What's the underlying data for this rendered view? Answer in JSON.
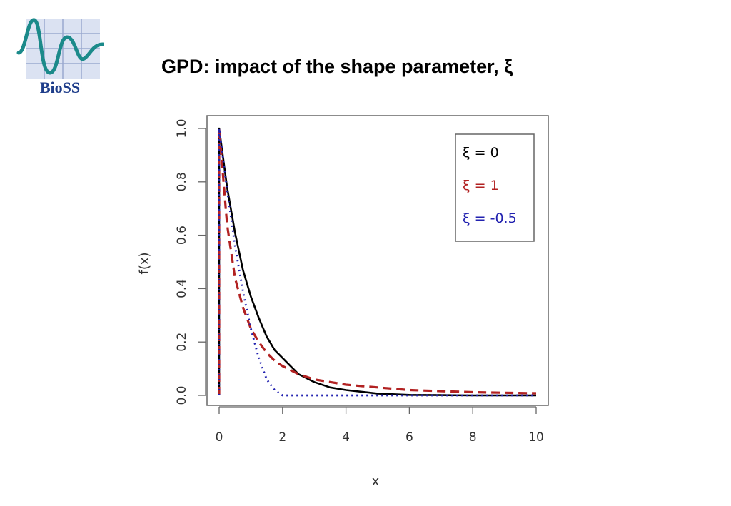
{
  "logo": {
    "text": "BioSS",
    "icon": "bioss-wave-logo",
    "colors": {
      "wave": "#1b8a8a",
      "grid": "#b8c4e0",
      "text": "#1e3d8a"
    }
  },
  "slide": {
    "title": "GPD: impact of the shape parameter, ξ"
  },
  "chart_data": {
    "type": "line",
    "title": "",
    "xlabel": "x",
    "ylabel": "f(x)",
    "xlim": [
      0,
      10
    ],
    "ylim": [
      0,
      1
    ],
    "x_ticks": [
      "0",
      "2",
      "4",
      "6",
      "8",
      "10"
    ],
    "y_ticks": [
      "0.0",
      "0.2",
      "0.4",
      "0.6",
      "0.8",
      "1.0"
    ],
    "legend_position": "top-right",
    "series": [
      {
        "name": "ξ = 0",
        "color": "#000000",
        "style": "solid",
        "x": [
          0,
          0.25,
          0.5,
          0.75,
          1,
          1.25,
          1.5,
          1.75,
          2,
          2.5,
          3,
          3.5,
          4,
          5,
          6,
          7,
          8,
          9,
          10
        ],
        "y": [
          1,
          0.78,
          0.61,
          0.47,
          0.37,
          0.29,
          0.22,
          0.17,
          0.14,
          0.08,
          0.05,
          0.03,
          0.02,
          0.007,
          0.002,
          0.001,
          0.0,
          0.0,
          0.0
        ]
      },
      {
        "name": "ξ = 1",
        "color": "#b22222",
        "style": "dashed",
        "x": [
          0,
          0.25,
          0.5,
          0.75,
          1,
          1.25,
          1.5,
          1.75,
          2,
          2.5,
          3,
          3.5,
          4,
          5,
          6,
          7,
          8,
          9,
          10
        ],
        "y": [
          1,
          0.64,
          0.44,
          0.33,
          0.25,
          0.2,
          0.16,
          0.13,
          0.11,
          0.08,
          0.06,
          0.05,
          0.04,
          0.03,
          0.02,
          0.016,
          0.012,
          0.01,
          0.008
        ]
      },
      {
        "name": "ξ = -0.5",
        "color": "#2222b0",
        "style": "dotted",
        "x": [
          0,
          0.25,
          0.5,
          0.75,
          1,
          1.25,
          1.5,
          1.75,
          2,
          3,
          4,
          5,
          6,
          7,
          8,
          9,
          10
        ],
        "y": [
          1,
          0.77,
          0.56,
          0.39,
          0.25,
          0.14,
          0.06,
          0.02,
          0,
          0,
          0,
          0,
          0,
          0,
          0,
          0,
          0
        ]
      }
    ]
  }
}
